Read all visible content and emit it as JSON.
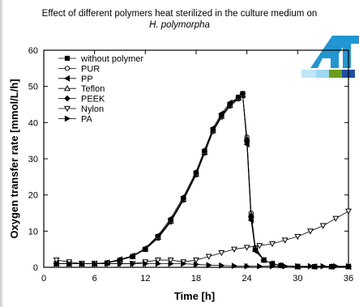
{
  "title": "Effect of different polymers heat sterilized in the culture medium on",
  "subtitle": "H. polymorpha",
  "logo": {
    "colors": [
      "#2196d3",
      "#bfe6f7",
      "#6b9e1f",
      "#1f4f9f",
      "#9fd6f0"
    ]
  },
  "chart_data": {
    "type": "scatter",
    "xlabel": "Time  [h]",
    "ylabel": "Oxygen transfer rate  [mmol/L/h]",
    "xlim": [
      0,
      36
    ],
    "ylim": [
      0,
      60
    ],
    "xticks": [
      0,
      6,
      12,
      18,
      24,
      30,
      36
    ],
    "yticks": [
      0,
      10,
      20,
      30,
      40,
      50,
      60
    ],
    "legend_position": "top-left",
    "series": [
      {
        "name": "without polymer",
        "marker": "square-filled",
        "x": [
          1.5,
          3,
          4.5,
          6,
          7.5,
          9,
          10.5,
          12,
          13.5,
          15,
          16.5,
          18,
          19,
          20,
          21,
          22,
          23,
          23.5,
          24,
          24.5,
          25,
          26,
          27,
          28,
          30,
          32,
          34,
          36
        ],
        "y": [
          1,
          1,
          1,
          1,
          1.2,
          2,
          3,
          5,
          8.5,
          13,
          19,
          26,
          32,
          38,
          42,
          45,
          47,
          48,
          35,
          14,
          5,
          2,
          1,
          0.5,
          0.2,
          0.2,
          0.2,
          0.2
        ]
      },
      {
        "name": "PUR",
        "marker": "circle-open",
        "x": [
          1.5,
          3,
          4.5,
          6,
          7.5,
          9,
          10.5,
          12,
          13.5,
          15,
          16.5,
          18,
          19,
          20,
          21,
          22,
          23,
          23.5,
          24,
          24.5,
          25,
          26,
          27,
          28,
          30,
          32,
          34,
          36
        ],
        "y": [
          1,
          1,
          1,
          1,
          1.2,
          2,
          3,
          5,
          8,
          12.5,
          18.5,
          25.5,
          31.5,
          37.5,
          41.5,
          44.5,
          46.5,
          47.5,
          36,
          15,
          5.5,
          2,
          1,
          0.5,
          0.2,
          0.2,
          0.2,
          0.2
        ]
      },
      {
        "name": "PP",
        "marker": "triangle-left-filled",
        "x": [
          1.5,
          3,
          4.5,
          6,
          7.5,
          9,
          10.5,
          12,
          13.5,
          15,
          16.5,
          18,
          19,
          20,
          21,
          22,
          23,
          23.5,
          24,
          24.5,
          25,
          26,
          27,
          28,
          30,
          32,
          34,
          36
        ],
        "y": [
          1,
          1,
          1,
          1,
          1.3,
          2.2,
          3.2,
          5.3,
          8.8,
          13.5,
          19.5,
          26.5,
          32.5,
          38.5,
          42.5,
          45.5,
          47,
          47.5,
          34,
          13,
          4.5,
          2,
          1,
          0.5,
          0.2,
          0.2,
          0.2,
          0.2
        ]
      },
      {
        "name": "Teflon",
        "marker": "triangle-up-open",
        "x": [
          1.5,
          3,
          4.5,
          6,
          7.5,
          9,
          10.5,
          12,
          13.5,
          15,
          16.5,
          18,
          19,
          20,
          21,
          22,
          23,
          23.5,
          24,
          24.5,
          25,
          26,
          27,
          28,
          30,
          32,
          34,
          36
        ],
        "y": [
          1,
          1,
          1,
          1,
          1.2,
          2,
          3,
          5,
          8.3,
          12.8,
          18.8,
          25.8,
          31.8,
          37.8,
          41.8,
          44.8,
          46.8,
          47.8,
          35.5,
          14.5,
          5,
          2,
          1,
          0.5,
          0.2,
          0.2,
          0.2,
          0.2
        ]
      },
      {
        "name": "PEEK",
        "marker": "diamond-filled",
        "x": [
          1.5,
          3,
          4.5,
          6,
          7.5,
          9,
          10.5,
          12,
          13.5,
          15,
          16.5,
          18,
          19,
          20,
          21,
          22,
          23,
          23.5,
          24,
          24.5,
          25,
          26,
          27,
          28,
          30,
          32,
          34,
          36
        ],
        "y": [
          1,
          1,
          1,
          1,
          1.2,
          2,
          3,
          5,
          8.5,
          13,
          19,
          26,
          32,
          38,
          42,
          45,
          47,
          48,
          35,
          14,
          5,
          2,
          1,
          0.5,
          0.2,
          0.2,
          0.2,
          0.2
        ]
      },
      {
        "name": "Nylon",
        "marker": "triangle-down-open",
        "x": [
          1.5,
          3,
          4.5,
          6,
          7.5,
          9,
          10.5,
          12,
          13.5,
          15,
          16.5,
          18,
          19.5,
          21,
          22.5,
          24,
          25.5,
          27,
          28.5,
          30,
          31.5,
          33,
          34.5,
          36
        ],
        "y": [
          2,
          1.5,
          1,
          1,
          1,
          1,
          1,
          1.5,
          2,
          2,
          1.5,
          2,
          3,
          4,
          5,
          5.5,
          6,
          6.5,
          7.5,
          8.5,
          10,
          11.5,
          13.5,
          15.5
        ]
      },
      {
        "name": "PA",
        "marker": "triangle-right-filled",
        "x": [
          1.5,
          3,
          4.5,
          6,
          7.5,
          9,
          10.5,
          12,
          13.5,
          15,
          16.5,
          18,
          19.5,
          21,
          22.5,
          24,
          25.5,
          27,
          28.5,
          30,
          31.5,
          33,
          34.5,
          36
        ],
        "y": [
          1,
          1,
          1,
          1,
          1,
          1,
          1,
          1,
          1,
          1,
          1,
          0.8,
          0.6,
          0.5,
          0.4,
          0.3,
          0.3,
          0.3,
          0.3,
          0.3,
          0.3,
          0.3,
          0.3,
          0.3
        ]
      }
    ]
  }
}
